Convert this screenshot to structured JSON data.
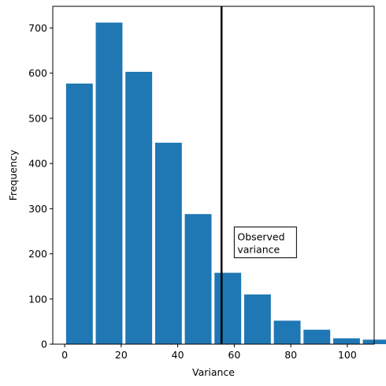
{
  "chart_data": {
    "type": "bar",
    "xlabel": "Variance",
    "ylabel": "Frequency",
    "xlim": [
      -4.2,
      109.5
    ],
    "ylim": [
      0,
      748
    ],
    "xticks": [
      0,
      20,
      40,
      60,
      80,
      100
    ],
    "yticks": [
      0,
      100,
      200,
      300,
      400,
      500,
      600,
      700
    ],
    "bin_width": 10.5,
    "bar_fill_fraction": 0.9,
    "bar_color": "#1f77b4",
    "bins": [
      {
        "x0": 0.5,
        "value": 577
      },
      {
        "x0": 11.0,
        "value": 712
      },
      {
        "x0": 21.5,
        "value": 603
      },
      {
        "x0": 32.0,
        "value": 446
      },
      {
        "x0": 42.5,
        "value": 288
      },
      {
        "x0": 53.0,
        "value": 158
      },
      {
        "x0": 63.5,
        "value": 110
      },
      {
        "x0": 74.0,
        "value": 52
      },
      {
        "x0": 84.5,
        "value": 32
      },
      {
        "x0": 95.0,
        "value": 13
      },
      {
        "x0": 105.5,
        "value": 10
      }
    ],
    "observed_line": {
      "x": 55.5,
      "color": "#000000"
    },
    "annotation": {
      "lines": [
        "Observed",
        "variance"
      ],
      "x": 60,
      "y": 200
    },
    "grid": false
  }
}
